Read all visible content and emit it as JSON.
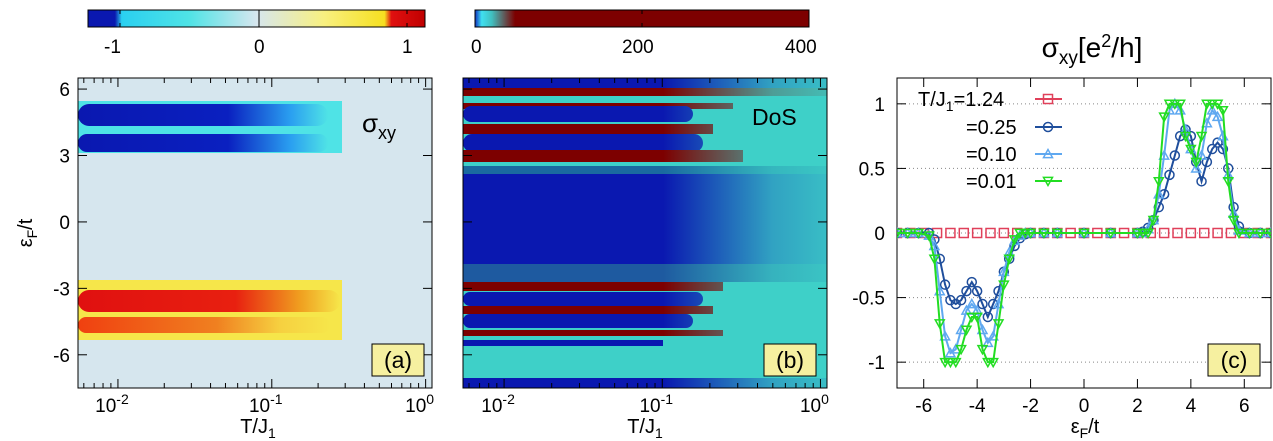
{
  "colors": {
    "deep_blue": "#0a18b0",
    "cyan": "#4fe3e6",
    "pale": "#d6e6ee",
    "yellow": "#f6e64a",
    "red": "#e01010",
    "dark_red": "#7d0000",
    "pink": "#e0405a",
    "navy": "#1f4e9c",
    "light_blue": "#5fa8f0",
    "green": "#22dd22"
  },
  "panel_a": {
    "colorbar_ticks": [
      "-1",
      "0",
      "1"
    ],
    "label": "(a)",
    "title_main": "σ",
    "title_sub": "xy",
    "ylabel_main": "ε",
    "ylabel_sub": "F",
    "ylabel_tail": "/t",
    "xlabel_main": "T/J",
    "xlabel_sub": "1",
    "x_ticks": [
      {
        "base": "10",
        "exp": "-2"
      },
      {
        "base": "10",
        "exp": "-1"
      },
      {
        "base": "10",
        "exp": "0"
      }
    ],
    "y_ticks": [
      "6",
      "3",
      "0",
      "-3",
      "-6"
    ]
  },
  "panel_b": {
    "colorbar_ticks": [
      "0",
      "200",
      "400"
    ],
    "label": "(b)",
    "title": "DoS",
    "xlabel_main": "T/J",
    "xlabel_sub": "1",
    "x_ticks": [
      {
        "base": "10",
        "exp": "-2"
      },
      {
        "base": "10",
        "exp": "-1"
      },
      {
        "base": "10",
        "exp": "0"
      }
    ]
  },
  "panel_c": {
    "title_main": "σ",
    "title_sub": "xy",
    "title_unit_a": "[e",
    "title_unit_sup": "2",
    "title_unit_b": "/h]",
    "label": "(c)",
    "xlabel_main": "ε",
    "xlabel_sub": "F",
    "xlabel_tail": "/t",
    "legend": [
      {
        "prefix": "T/J",
        "sub": "1",
        "value": "=1.24"
      },
      {
        "prefix": "",
        "sub": "",
        "value": "=0.25"
      },
      {
        "prefix": "",
        "sub": "",
        "value": "=0.10"
      },
      {
        "prefix": "",
        "sub": "",
        "value": "=0.01"
      }
    ],
    "x_ticks": [
      "-6",
      "-4",
      "-2",
      "0",
      "2",
      "4",
      "6"
    ],
    "y_ticks": [
      "1",
      "0.5",
      "0",
      "-0.5",
      "-1"
    ]
  },
  "chart_data": [
    {
      "type": "heatmap",
      "panel": "(a)",
      "title": "σxy",
      "xlabel": "T/J1",
      "ylabel": "εF/t",
      "x_scale": "log",
      "xlim": [
        0.0055,
        1.1
      ],
      "ylim": [
        -7.5,
        6.5
      ],
      "colorbar_range": [
        -1,
        1
      ],
      "background_value": 0,
      "features": [
        {
          "y_range": [
            4.6,
            5.5
          ],
          "value": -1,
          "ends_near_T": 0.26
        },
        {
          "y_range": [
            3.1,
            4.0
          ],
          "value": -1,
          "ends_near_T": 0.26
        },
        {
          "y_range": [
            -4.2,
            -3.0
          ],
          "value": 1,
          "ends_near_T": 0.26
        },
        {
          "y_range": [
            -5.0,
            -4.3
          ],
          "value": 0.9,
          "ends_near_T": 0.26
        }
      ]
    },
    {
      "type": "heatmap",
      "panel": "(b)",
      "title": "DoS",
      "xlabel": "T/J1",
      "x_scale": "log",
      "xlim": [
        0.0055,
        1.1
      ],
      "ylim": [
        -7.5,
        6.5
      ],
      "colorbar_range": [
        0,
        400
      ]
    },
    {
      "type": "line",
      "panel": "(c)",
      "title": "σxy[e2/h]",
      "xlabel": "εF/t",
      "xlim": [
        -7,
        7
      ],
      "ylim": [
        -1.2,
        1.2
      ],
      "series": [
        {
          "name": "T/J1=1.24",
          "marker": "square",
          "x": [
            -7,
            -6.5,
            -6,
            -5.5,
            -5,
            -4.5,
            -4,
            -3.5,
            -3,
            -2.5,
            -2,
            -1.5,
            -1,
            -0.5,
            0,
            0.5,
            1,
            1.5,
            2,
            2.5,
            3,
            3.5,
            4,
            4.5,
            5,
            5.5,
            6,
            6.5,
            7
          ],
          "y": [
            0,
            0,
            0,
            0,
            0,
            0,
            0,
            0,
            0,
            0,
            0,
            0,
            0,
            0,
            0,
            0,
            0,
            0,
            0,
            0,
            0,
            0,
            0,
            0,
            0,
            0,
            0,
            0,
            0
          ]
        },
        {
          "name": "=0.25",
          "marker": "circle",
          "x": [
            -7,
            -6.6,
            -6.2,
            -5.8,
            -5.6,
            -5.4,
            -5.2,
            -5.0,
            -4.8,
            -4.6,
            -4.4,
            -4.2,
            -4.0,
            -3.8,
            -3.6,
            -3.4,
            -3.2,
            -3.0,
            -2.8,
            -2.6,
            -2.4,
            -2.2,
            -2.0,
            -1.5,
            -1,
            0,
            1,
            2,
            2.2,
            2.4,
            2.6,
            2.8,
            3.0,
            3.2,
            3.4,
            3.6,
            3.8,
            4.0,
            4.2,
            4.4,
            4.6,
            4.8,
            5.0,
            5.2,
            5.4,
            5.6,
            5.8,
            6.2,
            6.6,
            7
          ],
          "y": [
            0,
            0,
            0,
            0,
            -0.05,
            -0.2,
            -0.4,
            -0.52,
            -0.55,
            -0.52,
            -0.45,
            -0.38,
            -0.45,
            -0.55,
            -0.65,
            -0.55,
            -0.45,
            -0.3,
            -0.2,
            -0.1,
            -0.04,
            -0.01,
            0,
            0,
            0,
            0,
            0,
            0,
            0.01,
            0.04,
            0.1,
            0.2,
            0.3,
            0.45,
            0.6,
            0.75,
            0.8,
            0.75,
            0.55,
            0.4,
            0.55,
            0.65,
            0.7,
            0.65,
            0.5,
            0.2,
            0.05,
            0,
            0,
            0
          ]
        },
        {
          "name": "=0.10",
          "marker": "triangle-up",
          "x": [
            -7,
            -6.6,
            -6.2,
            -5.8,
            -5.6,
            -5.4,
            -5.2,
            -5.0,
            -4.8,
            -4.6,
            -4.4,
            -4.2,
            -4.0,
            -3.8,
            -3.6,
            -3.4,
            -3.2,
            -3.0,
            -2.8,
            -2.6,
            -2.4,
            -2.2,
            -2.0,
            -1.5,
            -1,
            0,
            1,
            2,
            2.2,
            2.4,
            2.6,
            2.8,
            3.0,
            3.2,
            3.4,
            3.6,
            3.8,
            4.0,
            4.2,
            4.4,
            4.6,
            4.8,
            5.0,
            5.2,
            5.4,
            5.6,
            5.8,
            6.2,
            6.6,
            7
          ],
          "y": [
            0,
            0,
            0,
            -0.02,
            -0.1,
            -0.45,
            -0.8,
            -0.93,
            -0.9,
            -0.75,
            -0.6,
            -0.55,
            -0.6,
            -0.75,
            -0.85,
            -0.8,
            -0.55,
            -0.3,
            -0.15,
            -0.06,
            -0.02,
            0,
            0,
            0,
            0,
            0,
            0,
            0,
            0,
            0.03,
            0.1,
            0.3,
            0.6,
            0.95,
            1.0,
            0.95,
            0.8,
            0.65,
            0.5,
            0.6,
            0.85,
            0.95,
            0.9,
            0.75,
            0.45,
            0.15,
            0.02,
            0,
            0,
            0
          ]
        },
        {
          "name": "=0.01",
          "marker": "triangle-down",
          "x": [
            -7,
            -6.6,
            -6.2,
            -5.8,
            -5.6,
            -5.4,
            -5.2,
            -5.0,
            -4.8,
            -4.6,
            -4.4,
            -4.2,
            -4.0,
            -3.8,
            -3.6,
            -3.4,
            -3.2,
            -3.0,
            -2.8,
            -2.6,
            -2.4,
            -2.2,
            -2.0,
            -1.5,
            -1,
            0,
            1,
            2,
            2.2,
            2.4,
            2.6,
            2.8,
            3.0,
            3.2,
            3.4,
            3.6,
            3.8,
            4.0,
            4.2,
            4.4,
            4.6,
            4.8,
            5.0,
            5.2,
            5.4,
            5.6,
            5.8,
            6.2,
            6.6,
            7
          ],
          "y": [
            0,
            0,
            0,
            -0.02,
            -0.2,
            -0.7,
            -1.0,
            -1.0,
            -1.0,
            -0.9,
            -0.75,
            -0.65,
            -0.65,
            -0.9,
            -1.0,
            -1.0,
            -0.7,
            -0.4,
            -0.2,
            -0.05,
            0,
            0,
            0,
            0,
            0,
            0,
            0,
            0,
            0,
            0,
            0.1,
            0.4,
            0.9,
            1.0,
            1.0,
            1.0,
            0.75,
            0.65,
            0.55,
            0.75,
            1.0,
            1.0,
            1.0,
            0.95,
            0.4,
            0.1,
            0,
            0,
            0,
            0
          ]
        }
      ]
    }
  ]
}
